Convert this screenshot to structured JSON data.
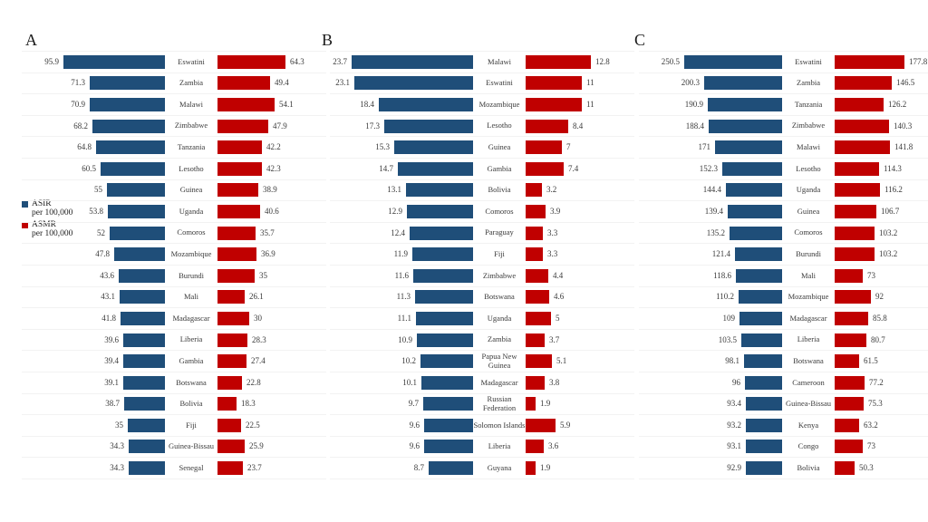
{
  "legend": {
    "asir_label": "ASIR",
    "asir_sub": "per 100,000",
    "asmr_label": "ASMR",
    "asmr_sub": "per 100,000"
  },
  "colors": {
    "asir": "#1F4E79",
    "asmr": "#C00000"
  },
  "chart_data": [
    {
      "type": "bar",
      "orientation": "horizontal",
      "panel_label": "A",
      "categories": [
        "Eswatini",
        "Zambia",
        "Malawi",
        "Zimbabwe",
        "Tanzania",
        "Lesotho",
        "Guinea",
        "Uganda",
        "Comoros",
        "Mozambique",
        "Burundi",
        "Mali",
        "Madagascar",
        "Liberia",
        "Gambia",
        "Botswana",
        "Bolivia",
        "Fiji",
        "Guinea-Bissau",
        "Senegal"
      ],
      "series": [
        {
          "name": "ASIR per 100,000",
          "values": [
            95.9,
            71.3,
            70.9,
            68.2,
            64.8,
            60.5,
            55,
            53.8,
            52,
            47.8,
            43.6,
            43.1,
            41.8,
            39.6,
            39.4,
            39.1,
            38.7,
            35,
            34.3,
            34.3
          ]
        },
        {
          "name": "ASMR per 100,000",
          "values": [
            64.3,
            49.4,
            54.1,
            47.9,
            42.2,
            42.3,
            38.9,
            40.6,
            35.7,
            36.9,
            35,
            26.1,
            30,
            28.3,
            27.4,
            22.8,
            18.3,
            22.5,
            25.9,
            23.7
          ]
        }
      ],
      "xlim": [
        0,
        95.9
      ]
    },
    {
      "type": "bar",
      "orientation": "horizontal",
      "panel_label": "B",
      "categories": [
        "Malawi",
        "Eswatini",
        "Mozambique",
        "Lesotho",
        "Guinea",
        "Gambia",
        "Bolivia",
        "Comoros",
        "Paraguay",
        "Fiji",
        "Zimbabwe",
        "Botswana",
        "Uganda",
        "Zambia",
        "Papua New Guinea",
        "Madagascar",
        "Russian Federation",
        "Solomon Islands",
        "Liberia",
        "Guyana"
      ],
      "series": [
        {
          "name": "ASIR per 100,000",
          "values": [
            23.7,
            23.1,
            18.4,
            17.3,
            15.3,
            14.7,
            13.1,
            12.9,
            12.4,
            11.9,
            11.6,
            11.3,
            11.1,
            10.9,
            10.2,
            10.1,
            9.7,
            9.6,
            9.6,
            8.7
          ]
        },
        {
          "name": "ASMR per 100,000",
          "values": [
            12.8,
            11,
            11,
            8.4,
            7,
            7.4,
            3.2,
            3.9,
            3.3,
            3.3,
            4.4,
            4.6,
            5,
            3.7,
            5.1,
            3.8,
            1.9,
            5.9,
            3.6,
            1.9
          ]
        }
      ],
      "xlim": [
        0,
        23.7
      ]
    },
    {
      "type": "bar",
      "orientation": "horizontal",
      "panel_label": "C",
      "categories": [
        "Eswatini",
        "Zambia",
        "Tanzania",
        "Zimbabwe",
        "Malawi",
        "Lesotho",
        "Uganda",
        "Guinea",
        "Comoros",
        "Burundi",
        "Mali",
        "Mozambique",
        "Madagascar",
        "Liberia",
        "Botswana",
        "Cameroon",
        "Guinea-Bissau",
        "Kenya",
        "Congo",
        "Bolivia"
      ],
      "series": [
        {
          "name": "ASIR per 100,000",
          "values": [
            250.5,
            200.3,
            190.9,
            188.4,
            171,
            152.3,
            144.4,
            139.4,
            135.2,
            121.4,
            118.6,
            110.2,
            109,
            103.5,
            98.1,
            96,
            93.4,
            93.2,
            93.1,
            92.9
          ]
        },
        {
          "name": "ASMR per 100,000",
          "values": [
            177.8,
            146.5,
            126.2,
            140.3,
            141.8,
            114.3,
            116.2,
            106.7,
            103.2,
            103.2,
            73,
            92,
            85.8,
            80.7,
            61.5,
            77.2,
            75.3,
            63.2,
            73,
            50.3
          ]
        }
      ],
      "xlim": [
        0,
        250.5
      ]
    }
  ]
}
